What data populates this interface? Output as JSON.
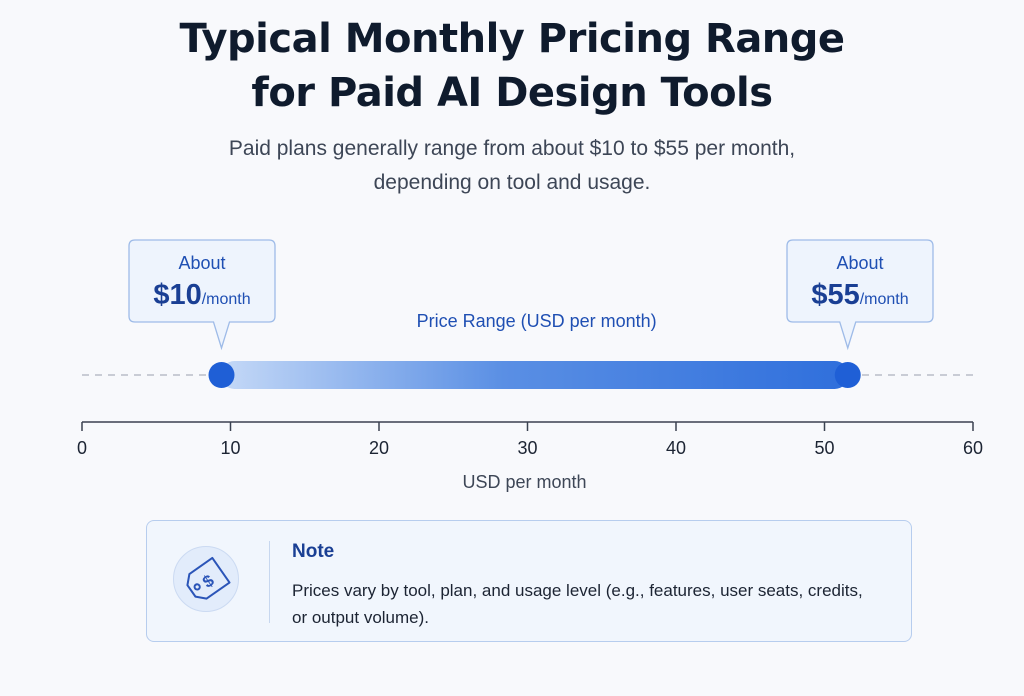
{
  "header": {
    "title_line1": "Typical Monthly Pricing Range",
    "title_line2": "for Paid AI Design Tools",
    "subtitle_line1": "Paid plans generally range from about $10 to $55 per month,",
    "subtitle_line2": "depending on tool and usage."
  },
  "chart_data": {
    "type": "range",
    "title": "Typical Monthly Pricing Range for Paid AI Design Tools",
    "range_label": "Price Range (USD per month)",
    "xlabel": "USD per month",
    "xlim": [
      0,
      60
    ],
    "xticks": [
      0,
      10,
      20,
      30,
      40,
      50,
      60
    ],
    "range": {
      "low": 10,
      "high": 55
    },
    "callouts": [
      {
        "name": "low",
        "prefix": "About",
        "value_text": "$10",
        "unit": "/month"
      },
      {
        "name": "high",
        "prefix": "About",
        "value_text": "$55",
        "unit": "/month"
      }
    ]
  },
  "note": {
    "icon": "price-tag-icon",
    "title": "Note",
    "text": "Prices vary by tool, plan, and usage level (e.g., features, user seats, credits, or output volume)."
  },
  "colors": {
    "accent": "#1f5fd6",
    "bar_start": "#c5d9f7",
    "bar_end": "#2f6fdc",
    "callout_bg": "#eef4fd",
    "callout_border": "#9ebbe8"
  }
}
